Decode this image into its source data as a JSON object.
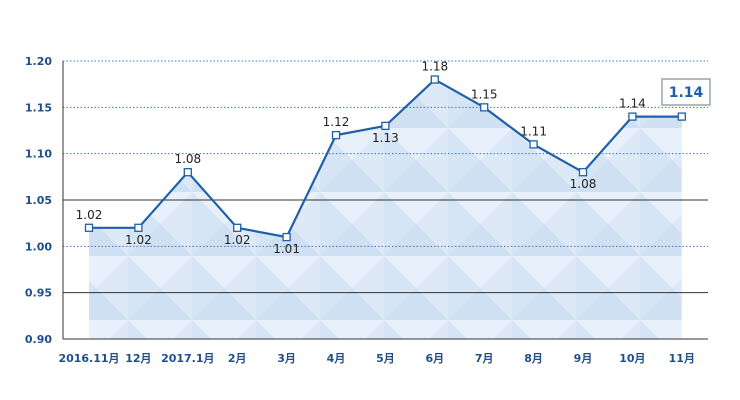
{
  "chart_data": {
    "type": "area",
    "categories": [
      "2016.11月",
      "12月",
      "2017.1月",
      "2月",
      "3月",
      "4月",
      "5月",
      "6月",
      "7月",
      "8月",
      "9月",
      "10月",
      "11月"
    ],
    "values": [
      1.02,
      1.02,
      1.08,
      1.02,
      1.01,
      1.12,
      1.13,
      1.18,
      1.15,
      1.11,
      1.08,
      1.14,
      1.14
    ],
    "data_labels": [
      "1.02",
      "1.02",
      "1.08",
      "1.02",
      "1.01",
      "1.12",
      "1.13",
      "1.18",
      "1.15",
      "1.11",
      "1.08",
      "1.14",
      ""
    ],
    "y_ticks": [
      "0.90",
      "0.95",
      "1.00",
      "1.05",
      "1.10",
      "1.15",
      "1.20"
    ],
    "ylim": [
      0.9,
      1.2
    ],
    "callout": "1.14",
    "grid": true,
    "colors": {
      "line": "#1f5fa8",
      "fill": "#dbe8f6",
      "axis_text": "#1f4e8c",
      "dotted_grid": "#3a76c4",
      "solid_grid": "#333333"
    }
  }
}
